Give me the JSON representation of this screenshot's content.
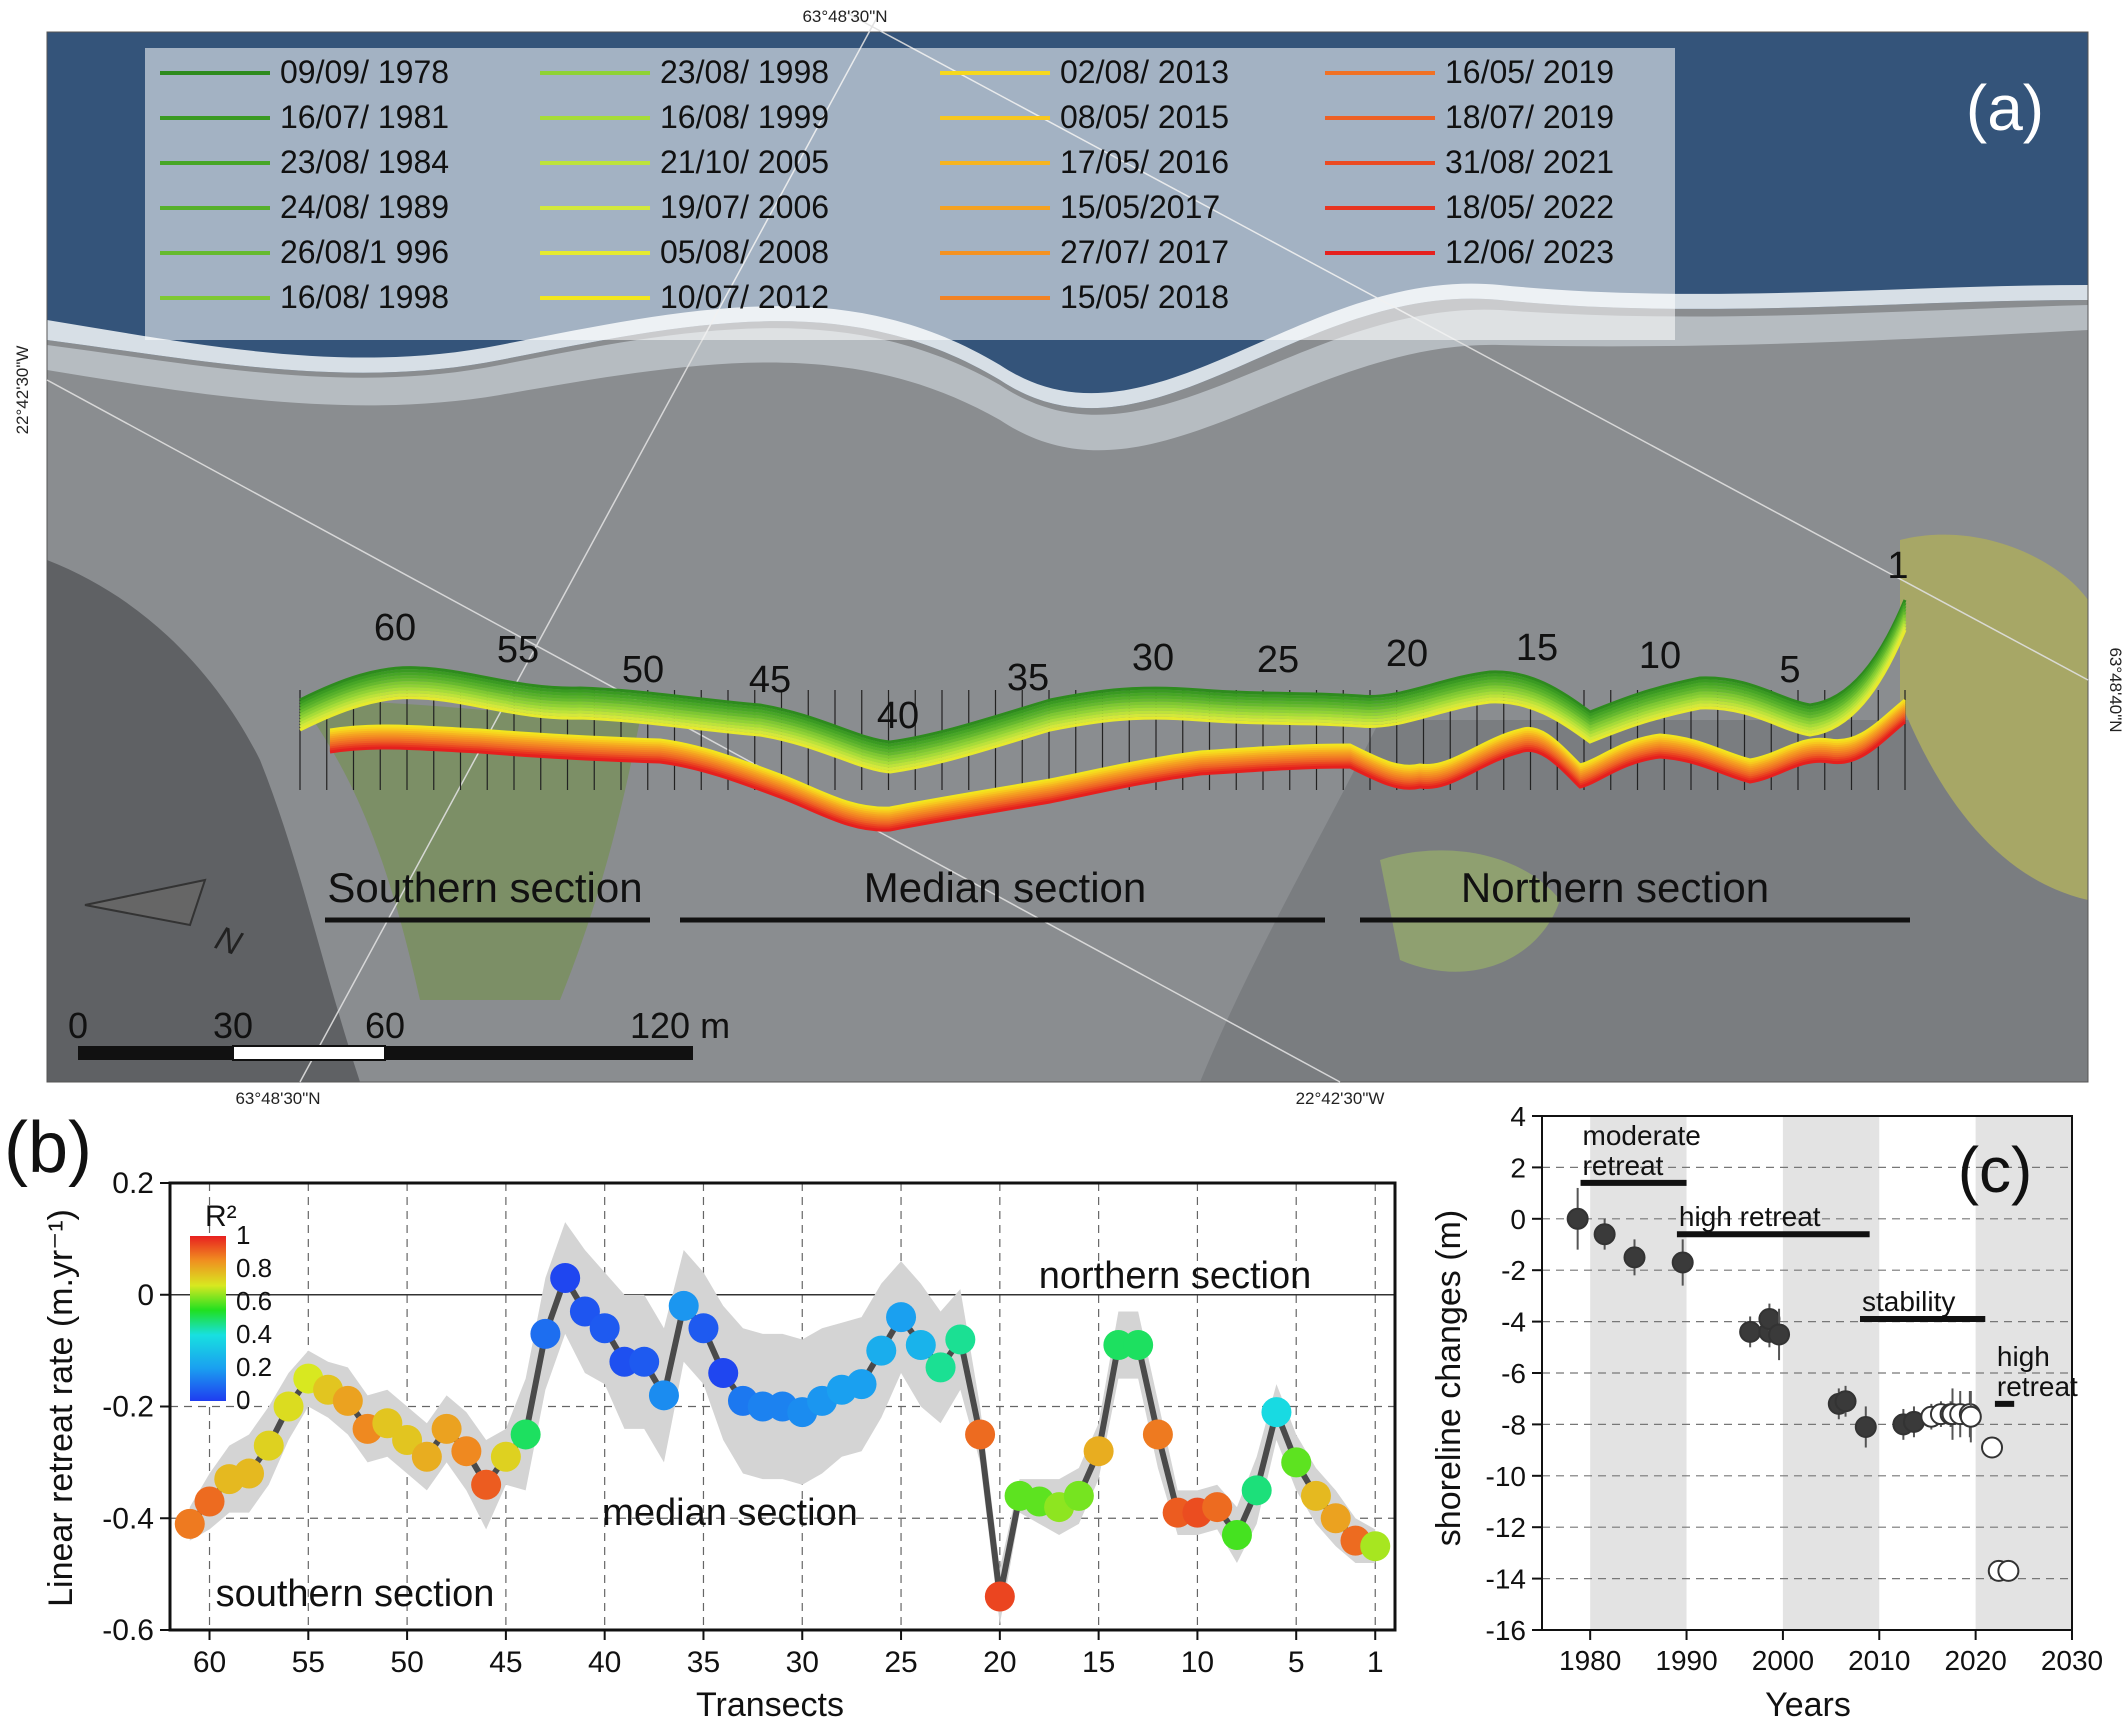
{
  "panel_a": {
    "label": "(a)",
    "coords": {
      "top": "63°48'30\"N",
      "bottom_left": "63°48'30\"N",
      "bottom_right": "22°42'30\"W",
      "left": "22°42'30\"W",
      "right": "63°48'40\"N"
    },
    "legend": [
      {
        "label": "09/09/ 1978",
        "color": "#2e8b1e"
      },
      {
        "label": "16/07/ 1981",
        "color": "#3a9a22"
      },
      {
        "label": "23/08/ 1984",
        "color": "#47a626"
      },
      {
        "label": "24/08/ 1989",
        "color": "#56b02a"
      },
      {
        "label": "26/08/1 996",
        "color": "#66ba2e"
      },
      {
        "label": "16/08/ 1998",
        "color": "#7ec832"
      },
      {
        "label": "23/08/ 1998",
        "color": "#8fd235"
      },
      {
        "label": "16/08/ 1999",
        "color": "#a6dc38"
      },
      {
        "label": "21/10/ 2005",
        "color": "#bde33a"
      },
      {
        "label": "19/07/ 2006",
        "color": "#d3e83c"
      },
      {
        "label": "05/08/ 2008",
        "color": "#e6ea2e"
      },
      {
        "label": "10/07/ 2012",
        "color": "#f2e61e"
      },
      {
        "label": "02/08/ 2013",
        "color": "#f6d81e"
      },
      {
        "label": "08/05/ 2015",
        "color": "#f7c71f"
      },
      {
        "label": "17/05/ 2016",
        "color": "#f6b420"
      },
      {
        "label": "15/05/2017",
        "color": "#f5a221"
      },
      {
        "label": "27/07/ 2017",
        "color": "#f49222"
      },
      {
        "label": "15/05/ 2018",
        "color": "#f28223"
      },
      {
        "label": "16/05/ 2019",
        "color": "#f07124"
      },
      {
        "label": "18/07/ 2019",
        "color": "#ee6024"
      },
      {
        "label": "31/08/ 2021",
        "color": "#eb4a22"
      },
      {
        "label": "18/05/ 2022",
        "color": "#e83420"
      },
      {
        "label": "12/06/ 2023",
        "color": "#e5201e"
      }
    ],
    "transect_labels": [
      "60",
      "55",
      "50",
      "45",
      "40",
      "35",
      "30",
      "25",
      "20",
      "15",
      "10",
      "5",
      "1"
    ],
    "sections": [
      "Southern section",
      "Median section",
      "Northern section"
    ],
    "scale_labels": [
      "0",
      "30",
      "60",
      "120 m"
    ],
    "north_label": "N"
  },
  "chart_data": [
    {
      "panel": "(b)",
      "type": "line",
      "xlabel": "Transects",
      "ylabel": "Linear retreat rate (m.yr⁻¹)",
      "x_ticks": [
        "60",
        "55",
        "50",
        "45",
        "40",
        "35",
        "30",
        "25",
        "20",
        "15",
        "10",
        "5",
        "1"
      ],
      "xlim": [
        62,
        0
      ],
      "ylim": [
        -0.6,
        0.2
      ],
      "y_ticks": [
        "0.2",
        "0",
        "-0.2",
        "-0.4",
        "-0.6"
      ],
      "grid": true,
      "annotations": [
        "northern section",
        "median section",
        "southern section"
      ],
      "colorbar": {
        "title": "R²",
        "ticks": [
          "1",
          "0.8",
          "0.6",
          "0.4",
          "0.2",
          "0"
        ]
      },
      "series": [
        {
          "x": [
            61,
            60,
            59,
            58,
            57,
            56,
            55,
            54,
            53,
            52,
            51,
            50,
            49,
            48,
            47,
            46,
            45,
            44,
            43,
            42,
            41,
            40,
            39,
            38,
            37,
            36,
            35,
            34,
            33,
            32,
            31,
            30,
            29,
            28,
            27,
            26,
            25,
            24,
            23,
            22,
            21,
            20,
            19,
            18,
            17,
            16,
            15,
            14,
            13,
            12,
            11,
            10,
            9,
            8,
            7,
            6,
            5,
            4,
            3,
            2,
            1
          ],
          "y": [
            -0.41,
            -0.37,
            -0.33,
            -0.32,
            -0.27,
            -0.2,
            -0.15,
            -0.17,
            -0.19,
            -0.24,
            -0.23,
            -0.26,
            -0.29,
            -0.24,
            -0.28,
            -0.34,
            -0.29,
            -0.25,
            -0.07,
            0.03,
            -0.03,
            -0.06,
            -0.12,
            -0.12,
            -0.18,
            -0.02,
            -0.06,
            -0.14,
            -0.19,
            -0.2,
            -0.2,
            -0.21,
            -0.19,
            -0.17,
            -0.16,
            -0.1,
            -0.04,
            -0.09,
            -0.13,
            -0.08,
            -0.25,
            -0.54,
            -0.36,
            -0.37,
            -0.38,
            -0.36,
            -0.28,
            -0.09,
            -0.09,
            -0.25,
            -0.39,
            -0.39,
            -0.38,
            -0.43,
            -0.35,
            -0.21,
            -0.3,
            -0.36,
            -0.4,
            -0.44,
            -0.45
          ],
          "r2": [
            0.88,
            0.9,
            0.78,
            0.78,
            0.74,
            0.72,
            0.7,
            0.76,
            0.82,
            0.86,
            0.76,
            0.76,
            0.8,
            0.82,
            0.86,
            0.92,
            0.74,
            0.5,
            0.1,
            0.02,
            0.05,
            0.06,
            0.04,
            0.06,
            0.16,
            0.18,
            0.06,
            0.02,
            0.12,
            0.14,
            0.14,
            0.16,
            0.18,
            0.2,
            0.2,
            0.24,
            0.2,
            0.26,
            0.46,
            0.46,
            0.9,
            0.95,
            0.6,
            0.6,
            0.64,
            0.62,
            0.8,
            0.5,
            0.5,
            0.88,
            0.92,
            0.94,
            0.9,
            0.58,
            0.48,
            0.38,
            0.6,
            0.78,
            0.82,
            0.9,
            0.66
          ],
          "band_upper": [
            -0.38,
            -0.32,
            -0.27,
            -0.25,
            -0.2,
            -0.14,
            -0.1,
            -0.12,
            -0.13,
            -0.18,
            -0.17,
            -0.2,
            -0.23,
            -0.18,
            -0.21,
            -0.26,
            -0.24,
            -0.15,
            0.03,
            0.13,
            0.08,
            0.04,
            0.0,
            0.0,
            -0.06,
            0.08,
            0.04,
            -0.02,
            -0.06,
            -0.07,
            -0.07,
            -0.08,
            -0.06,
            -0.05,
            -0.04,
            0.02,
            0.06,
            0.02,
            -0.03,
            0.01,
            -0.2,
            -0.49,
            -0.33,
            -0.33,
            -0.33,
            -0.31,
            -0.23,
            -0.03,
            -0.03,
            -0.19,
            -0.35,
            -0.35,
            -0.34,
            -0.38,
            -0.29,
            -0.16,
            -0.25,
            -0.31,
            -0.35,
            -0.4,
            -0.42
          ],
          "band_lower": [
            -0.44,
            -0.42,
            -0.39,
            -0.39,
            -0.34,
            -0.26,
            -0.2,
            -0.22,
            -0.25,
            -0.3,
            -0.29,
            -0.32,
            -0.35,
            -0.3,
            -0.35,
            -0.42,
            -0.34,
            -0.35,
            -0.17,
            -0.07,
            -0.14,
            -0.16,
            -0.24,
            -0.24,
            -0.3,
            -0.12,
            -0.16,
            -0.26,
            -0.32,
            -0.33,
            -0.33,
            -0.34,
            -0.32,
            -0.29,
            -0.28,
            -0.22,
            -0.14,
            -0.2,
            -0.23,
            -0.17,
            -0.3,
            -0.59,
            -0.39,
            -0.41,
            -0.43,
            -0.41,
            -0.33,
            -0.15,
            -0.15,
            -0.31,
            -0.43,
            -0.43,
            -0.42,
            -0.48,
            -0.41,
            -0.26,
            -0.35,
            -0.41,
            -0.45,
            -0.48,
            -0.48
          ]
        }
      ]
    },
    {
      "panel": "(c)",
      "type": "scatter",
      "xlabel": "Years",
      "ylabel": "shoreline changes (m)",
      "xlim": [
        1975,
        2030
      ],
      "ylim": [
        -16,
        4
      ],
      "x_ticks": [
        "1980",
        "1990",
        "2000",
        "2010",
        "2020",
        "2030"
      ],
      "y_ticks": [
        "4",
        "2",
        "0",
        "-2",
        "-4",
        "-6",
        "-8",
        "-10",
        "-12",
        "-14",
        "-16"
      ],
      "grid": true,
      "shaded_decades": [
        [
          1980,
          1990
        ],
        [
          2000,
          2010
        ],
        [
          2020,
          2030
        ]
      ],
      "period_bars": [
        {
          "label_lines": [
            "moderate",
            "retreat"
          ],
          "x0": 1979,
          "x1": 1990,
          "y": 1.4
        },
        {
          "label_lines": [
            "high retreat"
          ],
          "x0": 1989,
          "x1": 2009,
          "y": -0.6
        },
        {
          "label_lines": [
            "stability"
          ],
          "x0": 2008,
          "x1": 2021,
          "y": -3.9
        },
        {
          "label_lines": [
            "high",
            "retreat"
          ],
          "x0": 2022,
          "x1": 2024,
          "y": -7.2
        }
      ],
      "series": [
        {
          "name": "",
          "x": [
            1978.7,
            1981.5,
            1984.6,
            1989.6,
            1996.6,
            1998.6,
            1998.6,
            1999.6,
            2005.8,
            2006.5,
            2008.6,
            2012.5,
            2013.6,
            2015.4,
            2016.4,
            2017.4,
            2017.6,
            2018.4,
            2019.4,
            2019.5,
            2021.7,
            2022.4,
            2023.4
          ],
          "y": [
            0.0,
            -0.6,
            -1.5,
            -1.7,
            -4.4,
            -4.4,
            -3.9,
            -4.5,
            -7.2,
            -7.1,
            -8.1,
            -8.0,
            -7.9,
            -7.7,
            -7.6,
            -7.6,
            -7.6,
            -7.6,
            -7.6,
            -7.7,
            -8.9,
            -13.7,
            -13.7
          ],
          "err": [
            1.2,
            0.6,
            0.7,
            0.9,
            0.6,
            0.6,
            0.6,
            1.0,
            0.6,
            0.6,
            0.8,
            0.6,
            0.6,
            0.5,
            0.5,
            0.5,
            1.0,
            0.9,
            0.9,
            1.0,
            0.0,
            0.0,
            0.0
          ],
          "filled": [
            true,
            true,
            true,
            true,
            true,
            true,
            true,
            true,
            true,
            true,
            true,
            true,
            true,
            false,
            false,
            false,
            false,
            false,
            false,
            false,
            false,
            false,
            false
          ]
        }
      ]
    }
  ]
}
